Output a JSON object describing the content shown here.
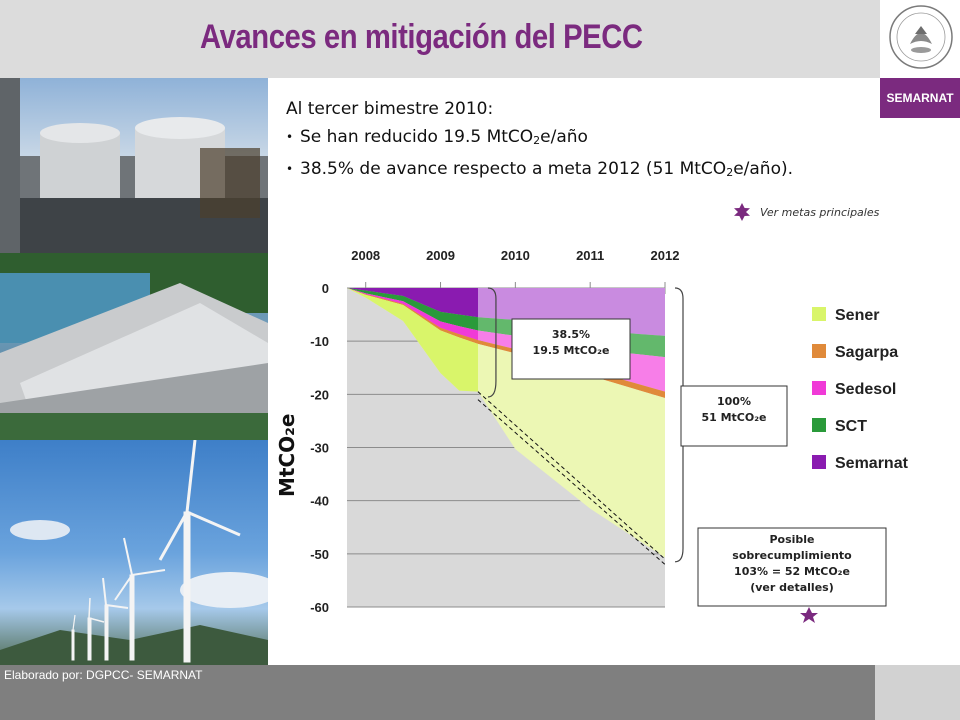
{
  "title": "Avances en mitigación del PECC",
  "logo": {
    "seal_text": "ESTADOS UNIDOS MEXICANOS",
    "agency": "SEMARNAT"
  },
  "summary": {
    "intro": "Al tercer bimestre 2010:",
    "bullet1_prefix": "Se han reducido 19.5 MtCO",
    "bullet1_sub": "2",
    "bullet1_suffix": "e/año",
    "bullet2_prefix": "38.5% de avance respecto a meta 2012  (51 MtCO",
    "bullet2_sub": "2",
    "bullet2_suffix": "e/año)."
  },
  "ver_metas": "Ver metas principales",
  "footer": "Elaborado por: DGPCC- SEMARNAT",
  "colors": {
    "accent": "#7b2a7f",
    "sener": "#d9f56a",
    "sagarpa": "#e08a3a",
    "sedesol": "#f03ad7",
    "sct": "#2a9a3a",
    "semarnat": "#8a1bb0",
    "sener_light": "#ecf7b4",
    "sedesol_light": "#f77ee8",
    "sct_light": "#63b86c",
    "semarnat_light": "#c98be0"
  },
  "chart_data": {
    "type": "area",
    "x": [
      2007.75,
      2008,
      2008.5,
      2009,
      2009.25,
      2009.5,
      2010,
      2011,
      2012
    ],
    "x_ticks": [
      "2008",
      "2009",
      "2010",
      "2011",
      "2012"
    ],
    "ylabel": "MtCO₂e",
    "yticks": [
      "0",
      "-10",
      "-20",
      "-30",
      "-40",
      "-50",
      "-60"
    ],
    "ylim": [
      -60,
      0
    ],
    "legend": [
      "Sener",
      "Sagarpa",
      "Sedesol",
      "SCT",
      "Semarnat"
    ],
    "series": [
      {
        "name": "Semarnat",
        "values": [
          0,
          -0.5,
          -1.5,
          -4.5,
          -5,
          -5.5,
          -6,
          -8,
          -9
        ]
      },
      {
        "name": "SCT",
        "values": [
          0,
          -0.5,
          -1.0,
          -1.8,
          -2.2,
          -2.5,
          -3,
          -3.5,
          -4
        ]
      },
      {
        "name": "Sedesol",
        "values": [
          0,
          -0.2,
          -0.5,
          -1.2,
          -1.5,
          -1.8,
          -2.5,
          -4,
          -6.5
        ]
      },
      {
        "name": "Sagarpa",
        "values": [
          0,
          -0.1,
          -0.2,
          -0.5,
          -0.6,
          -0.7,
          -0.8,
          -1.0,
          -1.2
        ]
      },
      {
        "name": "Sener",
        "values": [
          0,
          -0.5,
          -3,
          -8,
          -10,
          -9,
          -18,
          -25,
          -30
        ]
      }
    ],
    "projection_end_year": 2009.5,
    "dashed_lines": [
      {
        "from": [
          2009.5,
          -19.5
        ],
        "to": [
          2012,
          -51
        ]
      },
      {
        "from": [
          2009.5,
          -21
        ],
        "to": [
          2012,
          -52
        ]
      }
    ],
    "callouts": [
      {
        "line1": "38.5%",
        "line2": "19.5 MtCO₂e"
      },
      {
        "line1": "100%",
        "line2": "51 MtCO₂e"
      },
      {
        "line1": "Posible",
        "line2": "sobrecumplimiento",
        "line3": "103% = 52 MtCO₂e",
        "line4": "(ver detalles)"
      }
    ]
  }
}
